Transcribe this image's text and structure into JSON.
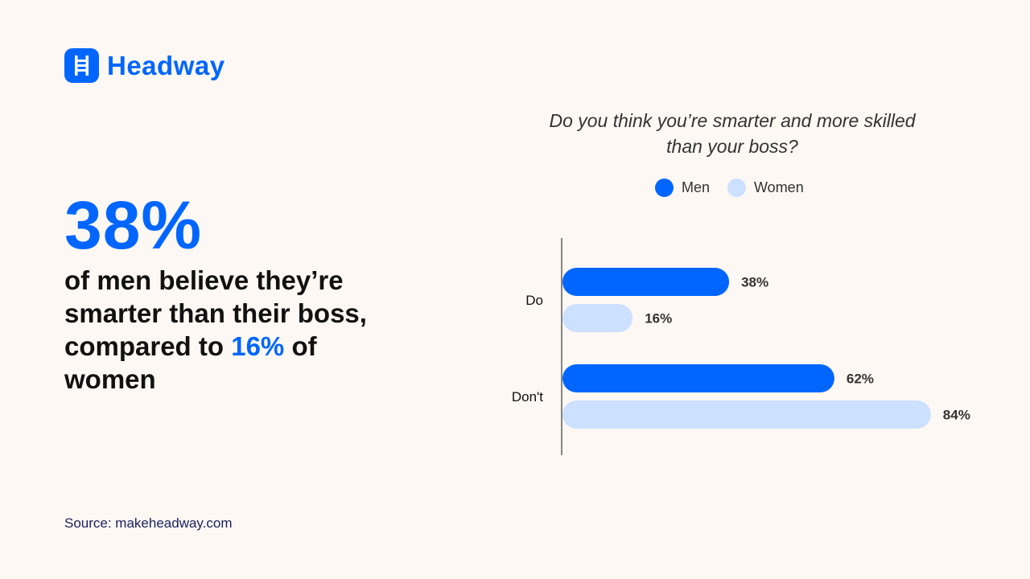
{
  "brand": {
    "name": "Headway",
    "icon": "ladder-icon",
    "color": "#0066ff"
  },
  "headline": {
    "stat": "38%",
    "text_before": "of men believe they’re smarter than their boss, compared to",
    "highlight": "16%",
    "text_after": "of women"
  },
  "source": "Source: makeheadway.com",
  "chart_data": {
    "type": "bar",
    "orientation": "horizontal",
    "title": "Do you think you’re smarter and more skilled than your boss?",
    "categories": [
      "Do",
      "Don't"
    ],
    "series": [
      {
        "name": "Men",
        "color": "#0066ff",
        "values": [
          38,
          62
        ],
        "labels": [
          "38%",
          "62%"
        ]
      },
      {
        "name": "Women",
        "color": "#cce0ff",
        "values": [
          16,
          84
        ],
        "labels": [
          "16%",
          "84%"
        ]
      }
    ],
    "unit": "%",
    "xlim": [
      0,
      100
    ],
    "grid": false,
    "legend": "top"
  }
}
